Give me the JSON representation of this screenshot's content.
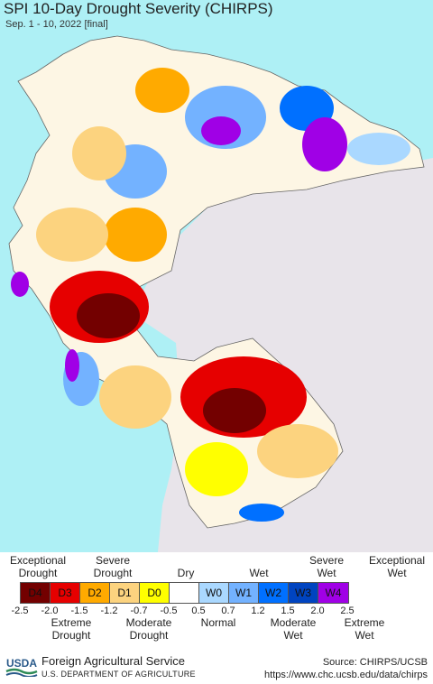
{
  "header": {
    "title": "SPI 10-Day Drought Severity (CHIRPS)",
    "subtitle": "Sep. 1 - 10, 2022 [final]"
  },
  "colors": {
    "ocean": "#aef0f5",
    "outside_land": "#e8e4ea",
    "D4": "#730000",
    "D3": "#e60000",
    "D2": "#ffaa00",
    "D1": "#fcd37f",
    "D0": "#ffff00",
    "normal": "#ffffff",
    "W0": "#aad8ff",
    "W1": "#73b2ff",
    "W2": "#0070ff",
    "W3": "#0044c0",
    "W4": "#a000e6"
  },
  "legend": {
    "top_labels": {
      "exceptional_drought": "Exceptional\nDrought",
      "severe_drought": "Severe\nDrought",
      "dry": "Dry",
      "wet": "Wet",
      "severe_wet": "Severe\nWet",
      "exceptional_wet": "Exceptional\nWet"
    },
    "cells": [
      {
        "code": "D4",
        "color": "#730000"
      },
      {
        "code": "D3",
        "color": "#e60000"
      },
      {
        "code": "D2",
        "color": "#ffaa00"
      },
      {
        "code": "D1",
        "color": "#fcd37f"
      },
      {
        "code": "D0",
        "color": "#ffff00"
      },
      {
        "code": "",
        "color": "#ffffff"
      },
      {
        "code": "W0",
        "color": "#aad8ff"
      },
      {
        "code": "W1",
        "color": "#73b2ff"
      },
      {
        "code": "W2",
        "color": "#0070ff"
      },
      {
        "code": "W3",
        "color": "#0044c0"
      },
      {
        "code": "W4",
        "color": "#a000e6"
      }
    ],
    "ticks": [
      "-2.5",
      "-2.0",
      "-1.5",
      "-1.2",
      "-0.7",
      "-0.5",
      "0.5",
      "0.7",
      "1.2",
      "1.5",
      "2.0",
      "2.5"
    ],
    "bottom_labels": {
      "extreme_drought": "Extreme\nDrought",
      "moderate_drought": "Moderate\nDrought",
      "normal": "Normal",
      "moderate_wet": "Moderate\nWet",
      "extreme_wet": "Extreme\nWet"
    }
  },
  "footer": {
    "logo_text": "USDA",
    "agency": "Foreign Agricultural Service",
    "department": "U.S. DEPARTMENT OF AGRICULTURE",
    "source": "Source: CHIRPS/UCSB",
    "url": "https://www.chc.ucsb.edu/data/chirps"
  }
}
